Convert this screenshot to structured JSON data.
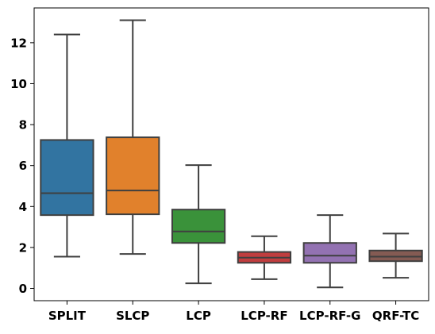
{
  "chart_data": {
    "type": "box",
    "title": "",
    "xlabel": "",
    "ylabel": "",
    "ylim": [
      -0.6,
      13.7
    ],
    "yticks": [
      0,
      2,
      4,
      6,
      8,
      10,
      12
    ],
    "grid": false,
    "legend": "none",
    "box_stroke_color": "#3f3f3f",
    "categories": [
      "SPLIT",
      "SLCP",
      "LCP",
      "LCP-RF",
      "LCP-RF-G",
      "QRF-TC"
    ],
    "boxes": [
      {
        "category": "SPLIT",
        "whisker_low": 1.55,
        "q1": 3.58,
        "median": 4.65,
        "q3": 7.25,
        "whisker_high": 12.4,
        "color": "#3274a1"
      },
      {
        "category": "SLCP",
        "whisker_low": 1.68,
        "q1": 3.62,
        "median": 4.78,
        "q3": 7.38,
        "whisker_high": 13.1,
        "color": "#e1812c"
      },
      {
        "category": "LCP",
        "whisker_low": 0.25,
        "q1": 2.22,
        "median": 2.78,
        "q3": 3.85,
        "whisker_high": 6.02,
        "color": "#3a923a"
      },
      {
        "category": "LCP-RF",
        "whisker_low": 0.45,
        "q1": 1.25,
        "median": 1.5,
        "q3": 1.78,
        "whisker_high": 2.55,
        "color": "#c03d3e"
      },
      {
        "category": "LCP-RF-G",
        "whisker_low": 0.05,
        "q1": 1.25,
        "median": 1.6,
        "q3": 2.22,
        "whisker_high": 3.58,
        "color": "#9372b2"
      },
      {
        "category": "QRF-TC",
        "whisker_low": 0.52,
        "q1": 1.33,
        "median": 1.55,
        "q3": 1.85,
        "whisker_high": 2.68,
        "color": "#845b53"
      }
    ]
  }
}
